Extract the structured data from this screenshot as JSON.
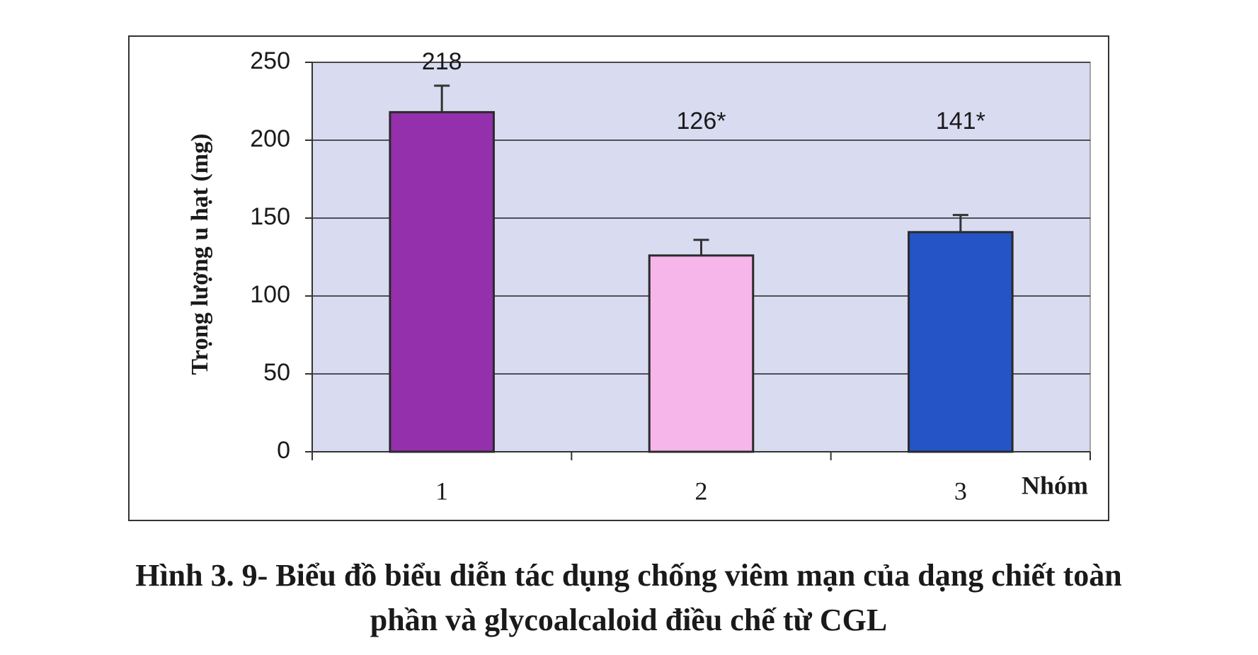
{
  "chart_data": {
    "type": "bar",
    "y_label": "Trọng lượng u hạt (mg)",
    "x_label": "Nhóm",
    "categories": [
      "1",
      "2",
      "3"
    ],
    "values": [
      218,
      126,
      141
    ],
    "value_labels": [
      "218",
      "126*",
      "141*"
    ],
    "errors": [
      17,
      10,
      11
    ],
    "colors": [
      "#9530ad",
      "#f6b6ea",
      "#2454c6"
    ],
    "ylim": [
      0,
      250
    ],
    "yticks": [
      0,
      50,
      100,
      150,
      200,
      250
    ],
    "grid": true,
    "caption": [
      "Hình 3. 9- Biểu đồ biểu diễn tác dụng chống viêm mạn của dạng chiết toàn",
      "phần và glycoalcaloid  điều chế từ CGL"
    ]
  }
}
